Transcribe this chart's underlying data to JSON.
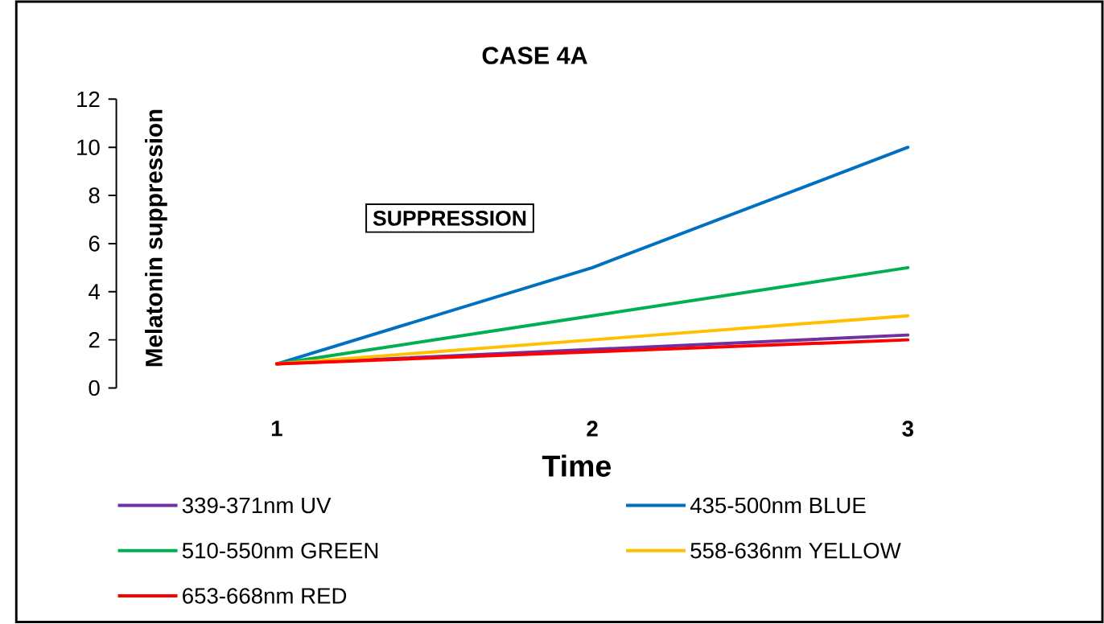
{
  "chart_data": {
    "type": "line",
    "title": "CASE 4A",
    "xlabel": "Time",
    "ylabel": "Melatonin suppression",
    "annotations": [
      "SUPPRESSION"
    ],
    "categories": [
      "1",
      "2",
      "3"
    ],
    "series": [
      {
        "name": "339-371nm UV",
        "color": "#7030a0",
        "values": [
          1,
          1.6,
          2.2
        ]
      },
      {
        "name": "435-500nm BLUE",
        "color": "#0070c0",
        "values": [
          1,
          5,
          10
        ]
      },
      {
        "name": "510-550nm GREEN",
        "color": "#00b050",
        "values": [
          1,
          3,
          5
        ]
      },
      {
        "name": "558-636nm YELLOW",
        "color": "#ffc000",
        "values": [
          1,
          2,
          3
        ]
      },
      {
        "name": "653-668nm RED",
        "color": "#ff0000",
        "values": [
          1,
          1.5,
          2
        ]
      }
    ],
    "ylim": [
      0,
      12
    ],
    "yticks": [
      0,
      2,
      4,
      6,
      8,
      10,
      12
    ],
    "legend": "bottom"
  }
}
